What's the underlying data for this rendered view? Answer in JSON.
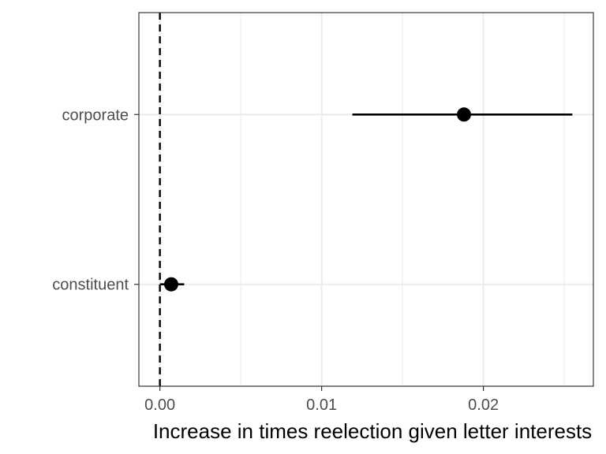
{
  "chart_data": {
    "type": "scatter",
    "subtype": "point-range (coefficient plot)",
    "title": "",
    "xlabel": "Increase in times reelection given letter interests",
    "ylabel": "",
    "categories": [
      "constituent",
      "corporate"
    ],
    "points": [
      {
        "category": "corporate",
        "estimate": 0.0188,
        "low": 0.0119,
        "high": 0.0255
      },
      {
        "category": "constituent",
        "estimate": 0.0007,
        "low": 0.0,
        "high": 0.0015
      }
    ],
    "xlim": [
      -0.0013,
      0.0268
    ],
    "xticks": [
      0.0,
      0.01,
      0.02
    ],
    "xtick_labels": [
      "0.00",
      "0.01",
      "0.02"
    ],
    "reference_line": {
      "x": 0,
      "style": "dashed"
    },
    "grid": true,
    "legend": "none",
    "colors": {
      "point": "#000000",
      "errorbar": "#000000",
      "grid": "#ebebeb",
      "panel_border": "#333333",
      "tick_text": "#4d4d4d"
    }
  }
}
